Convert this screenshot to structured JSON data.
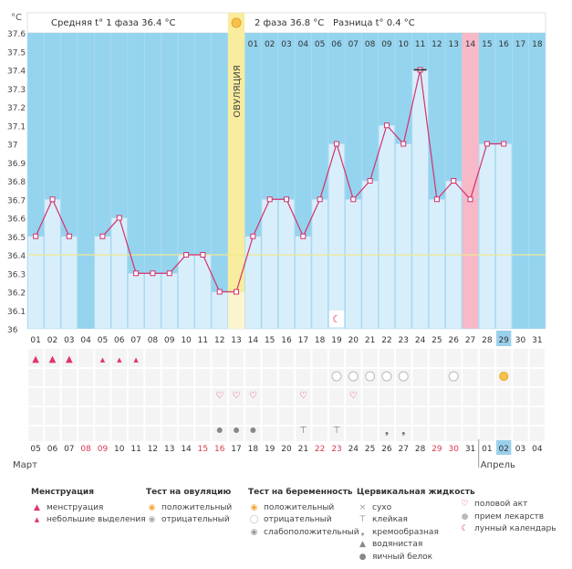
{
  "chart_data": {
    "type": "line",
    "y_unit": "°C",
    "ylim": [
      36,
      37.6
    ],
    "y_ticks": [
      "37.6",
      "37.5",
      "37.4",
      "37.3",
      "37.2",
      "37.1",
      "37",
      "36.9",
      "36.8",
      "36.7",
      "36.6",
      "36.5",
      "36.4",
      "36.3",
      "36.2",
      "36.1",
      "36"
    ],
    "days": [
      "01",
      "02",
      "03",
      "04",
      "05",
      "06",
      "07",
      "08",
      "09",
      "10",
      "11",
      "12",
      "13",
      "14",
      "15",
      "16",
      "17",
      "18",
      "19",
      "20",
      "21",
      "22",
      "23",
      "24",
      "25",
      "26",
      "27",
      "28",
      "29",
      "30",
      "31"
    ],
    "values": [
      36.5,
      36.7,
      36.5,
      null,
      36.5,
      36.6,
      36.3,
      36.3,
      36.3,
      36.4,
      36.4,
      36.2,
      36.2,
      36.5,
      36.7,
      36.7,
      36.5,
      36.7,
      37.0,
      36.7,
      36.8,
      37.1,
      37.0,
      37.4,
      36.7,
      36.8,
      36.7,
      37.0,
      37.0,
      null,
      null
    ],
    "baseline": 36.4,
    "phase1_avg_label": "Средняя t° 1 фаза 36.4 °C",
    "phase2_avg_label": "2 фаза 36.8 °C",
    "diff_label": "Разница t° 0.4 °C",
    "ovulation_label": "ОВУЛЯЦИЯ",
    "ovulation_day_index": 12,
    "cycle_days": [
      "01",
      "02",
      "03",
      "04",
      "05",
      "06",
      "07",
      "08",
      "09",
      "10",
      "11",
      "12",
      "13",
      "14",
      "15",
      "16",
      "17",
      "18"
    ],
    "highlight_cycle_day": "14",
    "highlight_top_day": "29",
    "date_days": [
      "05",
      "06",
      "07",
      "08",
      "09",
      "10",
      "11",
      "12",
      "13",
      "14",
      "15",
      "16",
      "17",
      "18",
      "19",
      "20",
      "21",
      "22",
      "23",
      "24",
      "25",
      "26",
      "27",
      "28",
      "29",
      "30",
      "31",
      "01",
      "02",
      "03",
      "04"
    ],
    "weekend_indices": [
      3,
      4,
      10,
      11,
      17,
      18,
      24,
      25
    ],
    "highlight_date_index": 28,
    "month_left": "Март",
    "month_right": "Апрель"
  },
  "colors": {
    "chart_bg": "#95d4ee",
    "bar": "#d8effb",
    "bar_border": "#a9d6ee",
    "line": "#d4316e",
    "ovulation": "#f8ec9e",
    "highlight_pink": "#f7b8c8",
    "highlight_blue": "#9bd0ec",
    "baseline": "#f0e890",
    "weekend": "#d83a4c"
  },
  "markers": {
    "menstruation_big": [
      0,
      1,
      2
    ],
    "menstruation_small": [
      4,
      5,
      6
    ],
    "ovulation_positive": [
      28
    ],
    "cervical_dry": [
      18
    ],
    "pregnancy_negative": [
      18,
      19,
      20,
      21,
      22,
      25
    ],
    "intercourse": [
      11,
      12,
      13,
      16,
      19
    ],
    "sticky": [
      16,
      18
    ],
    "creamy": [
      21,
      22
    ],
    "egg_white": [
      11,
      12,
      13
    ],
    "moon": [
      18
    ]
  },
  "legend": {
    "menstruation": {
      "title": "Менструация",
      "items": [
        "менструация",
        "небольшие выделения"
      ]
    },
    "ovulation_test": {
      "title": "Тест на овуляцию",
      "items": [
        "положительный",
        "отрицательный"
      ]
    },
    "pregnancy_test": {
      "title": "Тест на беременность",
      "items": [
        "положительный",
        "отрицательный",
        "слабоположительный"
      ]
    },
    "cervical": {
      "title": "Цервикальная жидкость",
      "items": [
        "сухо",
        "клейкая",
        "кремообразная",
        "водянистая",
        "яичный белок"
      ]
    },
    "other": {
      "items": [
        "половой акт",
        "прием лекарств",
        "лунный календарь"
      ]
    }
  }
}
